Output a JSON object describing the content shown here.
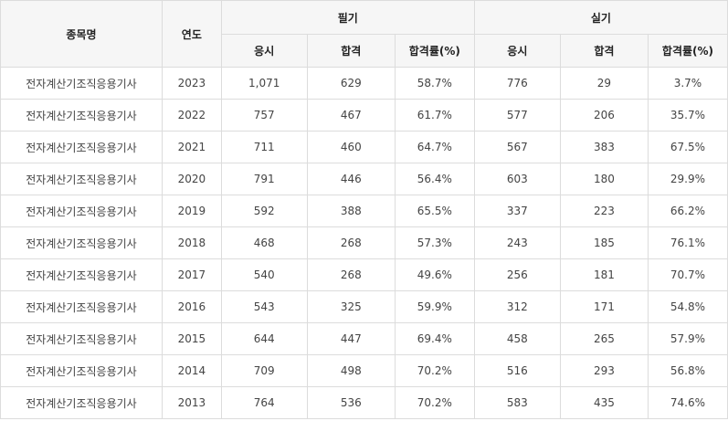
{
  "headers": {
    "subject": "종목명",
    "year": "연도",
    "written": "필기",
    "practical": "실기",
    "applicants": "응시",
    "passed": "합격",
    "pass_rate": "합격률(%)"
  },
  "rows": [
    {
      "name": "전자계산기조직응용기사",
      "year": "2023",
      "w_app": "1,071",
      "w_pass": "629",
      "w_rate": "58.7%",
      "p_app": "776",
      "p_pass": "29",
      "p_rate": "3.7%"
    },
    {
      "name": "전자계산기조직응용기사",
      "year": "2022",
      "w_app": "757",
      "w_pass": "467",
      "w_rate": "61.7%",
      "p_app": "577",
      "p_pass": "206",
      "p_rate": "35.7%"
    },
    {
      "name": "전자계산기조직응용기사",
      "year": "2021",
      "w_app": "711",
      "w_pass": "460",
      "w_rate": "64.7%",
      "p_app": "567",
      "p_pass": "383",
      "p_rate": "67.5%"
    },
    {
      "name": "전자계산기조직응용기사",
      "year": "2020",
      "w_app": "791",
      "w_pass": "446",
      "w_rate": "56.4%",
      "p_app": "603",
      "p_pass": "180",
      "p_rate": "29.9%"
    },
    {
      "name": "전자계산기조직응용기사",
      "year": "2019",
      "w_app": "592",
      "w_pass": "388",
      "w_rate": "65.5%",
      "p_app": "337",
      "p_pass": "223",
      "p_rate": "66.2%"
    },
    {
      "name": "전자계산기조직응용기사",
      "year": "2018",
      "w_app": "468",
      "w_pass": "268",
      "w_rate": "57.3%",
      "p_app": "243",
      "p_pass": "185",
      "p_rate": "76.1%"
    },
    {
      "name": "전자계산기조직응용기사",
      "year": "2017",
      "w_app": "540",
      "w_pass": "268",
      "w_rate": "49.6%",
      "p_app": "256",
      "p_pass": "181",
      "p_rate": "70.7%"
    },
    {
      "name": "전자계산기조직응용기사",
      "year": "2016",
      "w_app": "543",
      "w_pass": "325",
      "w_rate": "59.9%",
      "p_app": "312",
      "p_pass": "171",
      "p_rate": "54.8%"
    },
    {
      "name": "전자계산기조직응용기사",
      "year": "2015",
      "w_app": "644",
      "w_pass": "447",
      "w_rate": "69.4%",
      "p_app": "458",
      "p_pass": "265",
      "p_rate": "57.9%"
    },
    {
      "name": "전자계산기조직응용기사",
      "year": "2014",
      "w_app": "709",
      "w_pass": "498",
      "w_rate": "70.2%",
      "p_app": "516",
      "p_pass": "293",
      "p_rate": "56.8%"
    },
    {
      "name": "전자계산기조직응용기사",
      "year": "2013",
      "w_app": "764",
      "w_pass": "536",
      "w_rate": "70.2%",
      "p_app": "583",
      "p_pass": "435",
      "p_rate": "74.6%"
    }
  ]
}
